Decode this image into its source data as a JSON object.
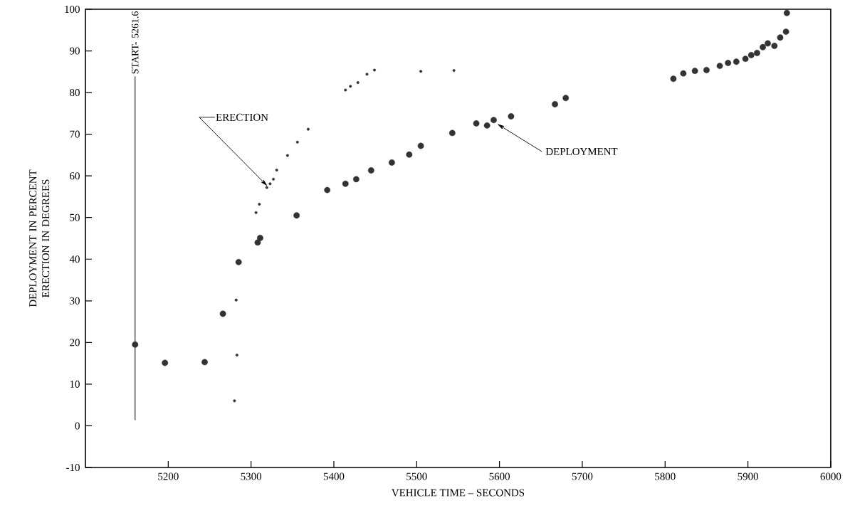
{
  "chart_data": {
    "type": "scatter",
    "xlabel": "VEHICLE TIME – SECONDS",
    "ylabel": "DEPLOYMENT IN PERCENT\nERECTION IN DEGREES",
    "xlim": [
      5100,
      6000
    ],
    "ylim": [
      -10,
      100
    ],
    "xticks": [
      5200,
      5300,
      5400,
      5500,
      5600,
      5700,
      5800,
      5900,
      6000
    ],
    "yticks": [
      -10,
      0,
      10,
      20,
      30,
      40,
      50,
      60,
      70,
      80,
      90,
      100
    ],
    "grid": false,
    "series": [
      {
        "color": "#333333",
        "x": [
          5160,
          5196,
          5244,
          5266,
          5285,
          5308,
          5311,
          5355,
          5392,
          5414,
          5427,
          5445,
          5470,
          5491,
          5505,
          5543,
          5572,
          5585,
          5593,
          5614,
          5667,
          5680,
          5810,
          5822,
          5836,
          5850,
          5866,
          5876,
          5886,
          5897,
          5904,
          5911,
          5918,
          5924,
          5932,
          5939,
          5946,
          5947
        ],
        "values": [
          19.5,
          15.1,
          15.3,
          26.9,
          39.3,
          44,
          45.1,
          50.5,
          56.6,
          58.1,
          59.2,
          61.3,
          63.2,
          65.1,
          67.2,
          70.3,
          72.6,
          72.1,
          73.4,
          74.3,
          77.2,
          78.7,
          83.3,
          84.6,
          85.2,
          85.4,
          86.4,
          87.1,
          87.4,
          88.1,
          89,
          89.5,
          90.9,
          91.8,
          91.2,
          93.2,
          94.6,
          99.1
        ]
      },
      {
        "color": "#333333",
        "x": [
          5280,
          5283,
          5282,
          5306,
          5310,
          5319,
          5323,
          5327,
          5331,
          5344,
          5356,
          5369,
          5414,
          5420,
          5429,
          5440,
          5449,
          5505,
          5545
        ],
        "values": [
          6,
          17,
          30.2,
          51.2,
          53.2,
          57.2,
          58.1,
          59.2,
          61.4,
          64.9,
          68.1,
          71.2,
          80.6,
          81.5,
          82.4,
          84.4,
          85.4,
          85.1,
          85.3
        ]
      }
    ],
    "ref_lines": [
      {
        "axis": "x",
        "value": 5160,
        "label": "START- 5261.6"
      }
    ],
    "annotations": [
      {
        "text": "ERECTION",
        "x": 5320,
        "y": 57.5
      },
      {
        "text": "DEPLOYMENT",
        "x": 5597,
        "y": 72.5
      }
    ]
  }
}
